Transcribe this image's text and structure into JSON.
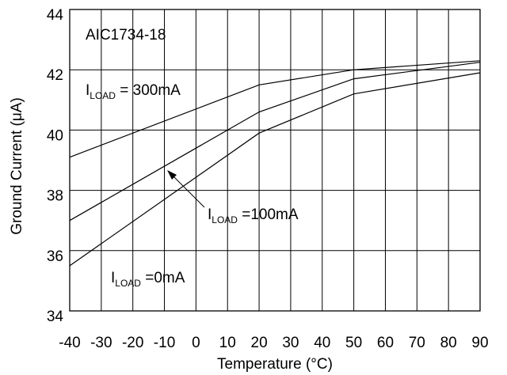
{
  "chart_data": {
    "type": "line",
    "title": "AIC1734-18",
    "xlabel": "Temperature (°C)",
    "ylabel": "Ground Current (μA)",
    "xlim": [
      -40,
      90
    ],
    "ylim": [
      34,
      44
    ],
    "x_ticks": [
      "-40",
      "-30",
      "-20",
      "-10",
      "0",
      "10",
      "20",
      "30",
      "40",
      "50",
      "60",
      "70",
      "80",
      "90"
    ],
    "y_ticks": [
      "34",
      "36",
      "38",
      "40",
      "42",
      "44"
    ],
    "grid": true,
    "series": [
      {
        "x": [
          -40,
          20,
          50,
          90
        ],
        "values": [
          39.1,
          41.5,
          42.0,
          42.3
        ]
      },
      {
        "x": [
          -40,
          20,
          50,
          90
        ],
        "values": [
          37.0,
          40.6,
          41.7,
          42.25
        ]
      },
      {
        "x": [
          -40,
          20,
          50,
          90
        ],
        "values": [
          35.5,
          39.9,
          41.2,
          41.9
        ]
      }
    ],
    "annotations": [
      {
        "prefix": "I",
        "sub": "LOAD",
        "text": " = 300mA"
      },
      {
        "prefix": "I",
        "sub": "LOAD",
        "text": " =100mA"
      },
      {
        "prefix": "I",
        "sub": "LOAD",
        "text": " =0mA"
      }
    ]
  }
}
